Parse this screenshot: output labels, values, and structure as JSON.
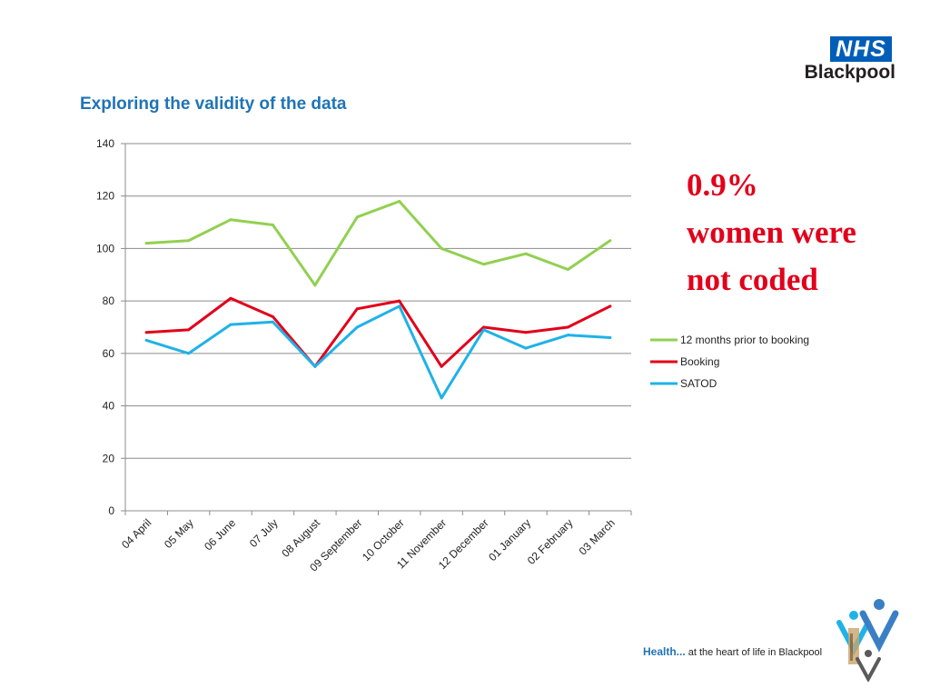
{
  "slide": {
    "title": "Exploring the validity of the data",
    "callout": [
      "0.9%",
      "women were",
      "not coded"
    ],
    "logo_box": "NHS",
    "logo_org": "Blackpool",
    "footer_lead": "Health...",
    "footer_rest": " at the heart of life in Blackpool"
  },
  "colors": {
    "title": "#1f74b6",
    "callout": "#e2001a",
    "nhs_blue": "#005eb8"
  },
  "chart_data": {
    "type": "line",
    "title": "",
    "xlabel": "",
    "ylabel": "",
    "categories": [
      "04 April",
      "05 May",
      "06 June",
      "07 July",
      "08 August",
      "09 September",
      "10 October",
      "11 November",
      "12 December",
      "01 January",
      "02 February",
      "03 March"
    ],
    "ylim": [
      0,
      140
    ],
    "yticks": [
      0,
      20,
      40,
      60,
      80,
      100,
      120,
      140
    ],
    "grid": true,
    "legend_position": "right",
    "series": [
      {
        "name": "12 months prior to booking",
        "color": "#92d050",
        "values": [
          102,
          103,
          111,
          109,
          86,
          112,
          118,
          100,
          94,
          98,
          92,
          103
        ]
      },
      {
        "name": "Booking",
        "color": "#e2001a",
        "values": [
          68,
          69,
          81,
          74,
          55,
          77,
          80,
          55,
          70,
          68,
          70,
          78
        ]
      },
      {
        "name": "SATOD",
        "color": "#1fb2e8",
        "values": [
          65,
          60,
          71,
          72,
          55,
          70,
          78,
          43,
          69,
          62,
          67,
          66
        ]
      }
    ]
  }
}
